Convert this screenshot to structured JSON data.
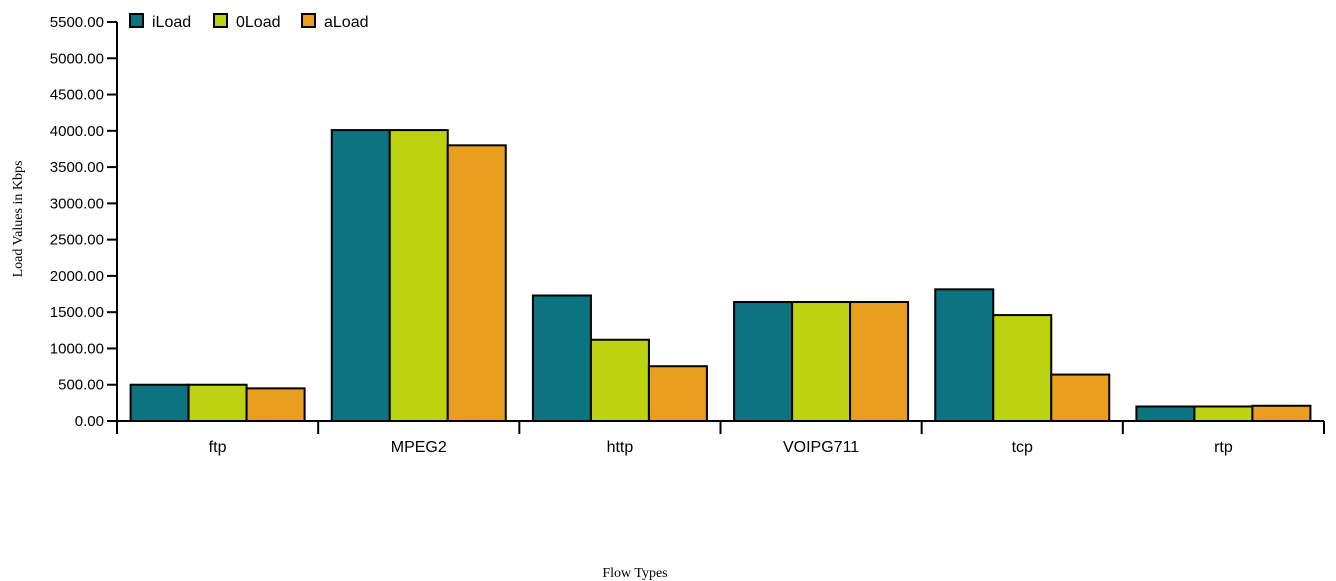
{
  "chart_data": {
    "type": "bar",
    "title": "",
    "xlabel": "Flow Types",
    "ylabel": "Load Values in Kbps",
    "ylim": [
      0,
      5500
    ],
    "yticks": [
      "0.00",
      "500.00",
      "1000.00",
      "1500.00",
      "2000.00",
      "2500.00",
      "3000.00",
      "3500.00",
      "4000.00",
      "4500.00",
      "5000.00",
      "5500.00"
    ],
    "categories": [
      "ftp",
      "MPEG2",
      "http",
      "VOIPG711",
      "tcp",
      "rtp"
    ],
    "series": [
      {
        "name": "iLoad",
        "color": "#0b7480",
        "values": [
          500,
          4010,
          1730,
          1640,
          1815,
          200
        ]
      },
      {
        "name": "0Load",
        "color": "#bcd312",
        "values": [
          500,
          4010,
          1120,
          1640,
          1460,
          200
        ]
      },
      {
        "name": "aLoad",
        "color": "#ea9e1f",
        "values": [
          450,
          3800,
          755,
          1640,
          640,
          210
        ]
      }
    ],
    "legend_position": "top-left",
    "grid": false
  }
}
